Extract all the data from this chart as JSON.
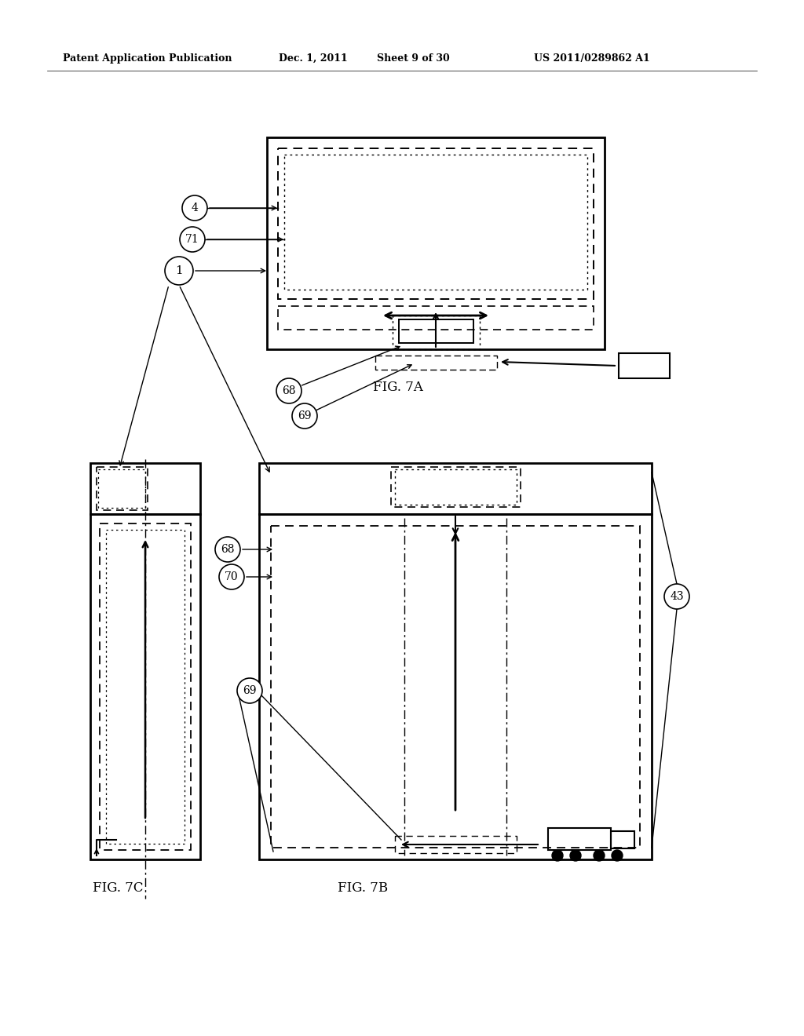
{
  "bg_color": "#ffffff",
  "header_text": "Patent Application Publication",
  "header_date": "Dec. 1, 2011",
  "header_sheet": "Sheet 9 of 30",
  "header_patent": "US 2011/0289862 A1",
  "fig7a_label": "FIG. 7A",
  "fig7b_label": "FIG. 7B",
  "fig7c_label": "FIG. 7C"
}
